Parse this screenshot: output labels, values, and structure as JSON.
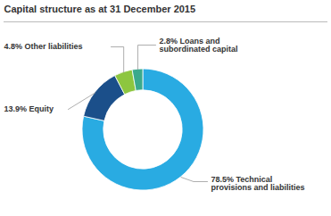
{
  "chart_data": {
    "type": "pie",
    "title": "Capital structure as at 31 December 2015",
    "categories": [
      "78.5% Technical\nprovisions and liabilities",
      "13.9% Equity",
      "4.8% Other liabilities",
      "2.8% Loans and\nsubordinated capital"
    ],
    "values": [
      78.5,
      13.9,
      4.8,
      2.8
    ],
    "colors": [
      "#29ABE2",
      "#1B4F8A",
      "#8DC63F",
      "#3AAA8C"
    ]
  }
}
